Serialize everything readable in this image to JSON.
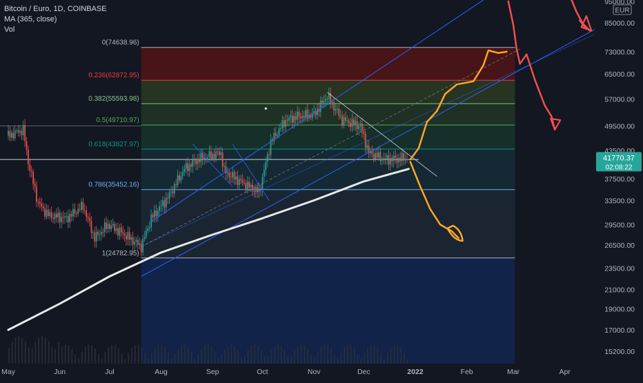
{
  "legend": {
    "symbol_line": "Bitcoin / Euro, 1D, COINBASE",
    "ma_line": "MA (365, close)",
    "vol_line": "Vol"
  },
  "currency_label": "EUR",
  "price_tag": {
    "price": "41770.37",
    "countdown": "02:08:22"
  },
  "colors": {
    "background": "#131722",
    "up": "#26a69a",
    "down": "#ef5350",
    "ma": "#e8e8e8",
    "channel": "#2962ff",
    "orange_drawing": "#ffa726",
    "red_drawing": "#f0504e"
  },
  "chart_data": {
    "type": "candlestick",
    "title": "Bitcoin / Euro, 1D, COINBASE",
    "y_scale": "log",
    "y_range": [
      14500,
      95000
    ],
    "x_range": [
      "2021-05-01",
      "2022-04-20"
    ],
    "y_ticks": [
      "95000.00",
      "85000.00",
      "73000.00",
      "65000.00",
      "57000.00",
      "49500.00",
      "43500.00",
      "37500.00",
      "33500.00",
      "29500.00",
      "26500.00",
      "23500.00",
      "21000.00",
      "19000.00",
      "17000.00",
      "15200.00"
    ],
    "x_ticks": [
      {
        "label": "May",
        "date": "2021-05-01"
      },
      {
        "label": "Jun",
        "date": "2021-06-01"
      },
      {
        "label": "Jul",
        "date": "2021-07-01"
      },
      {
        "label": "Aug",
        "date": "2021-08-01"
      },
      {
        "label": "Sep",
        "date": "2021-09-01"
      },
      {
        "label": "Oct",
        "date": "2021-10-01"
      },
      {
        "label": "Nov",
        "date": "2021-11-01"
      },
      {
        "label": "Dec",
        "date": "2021-12-01"
      },
      {
        "label": "2022",
        "date": "2022-01-01"
      },
      {
        "label": "Feb",
        "date": "2022-02-01"
      },
      {
        "label": "Mar",
        "date": "2022-03-01"
      },
      {
        "label": "Apr",
        "date": "2022-04-01"
      }
    ],
    "price_path": [
      [
        "2021-05-01",
        47000
      ],
      [
        "2021-05-10",
        48500
      ],
      [
        "2021-05-13",
        41000
      ],
      [
        "2021-05-19",
        33000
      ],
      [
        "2021-05-25",
        31000
      ],
      [
        "2021-06-05",
        30500
      ],
      [
        "2021-06-15",
        32500
      ],
      [
        "2021-06-22",
        27500
      ],
      [
        "2021-06-30",
        29500
      ],
      [
        "2021-07-10",
        28000
      ],
      [
        "2021-07-20",
        26300
      ],
      [
        "2021-07-26",
        30500
      ],
      [
        "2021-08-05",
        34000
      ],
      [
        "2021-08-15",
        39500
      ],
      [
        "2021-08-23",
        41500
      ],
      [
        "2021-09-06",
        43000
      ],
      [
        "2021-09-08",
        39000
      ],
      [
        "2021-09-20",
        36500
      ],
      [
        "2021-09-29",
        35000
      ],
      [
        "2021-10-06",
        45500
      ],
      [
        "2021-10-15",
        51000
      ],
      [
        "2021-10-22",
        52000
      ],
      [
        "2021-11-01",
        52500
      ],
      [
        "2021-11-09",
        58000
      ],
      [
        "2021-11-18",
        51000
      ],
      [
        "2021-11-29",
        49500
      ],
      [
        "2021-12-04",
        43000
      ],
      [
        "2021-12-14",
        41500
      ],
      [
        "2021-12-27",
        41770
      ]
    ],
    "moving_average_365": [
      [
        "2021-05-01",
        17000
      ],
      [
        "2021-06-01",
        19500
      ],
      [
        "2021-07-01",
        22500
      ],
      [
        "2021-08-01",
        25500
      ],
      [
        "2021-09-01",
        28000
      ],
      [
        "2021-10-01",
        30500
      ],
      [
        "2021-11-01",
        33500
      ],
      [
        "2021-12-01",
        37000
      ],
      [
        "2021-12-28",
        39500
      ]
    ],
    "fibonacci_levels": [
      {
        "ratio": "0",
        "value": 74638.96,
        "label": "0(74638.96)",
        "color": "#b2b5be"
      },
      {
        "ratio": "0.236",
        "value": 62872.95,
        "label": "0.236(62872.95)",
        "color": "#f23645"
      },
      {
        "ratio": "0.382",
        "value": 55593.98,
        "label": "0.382(55593.98)",
        "color": "#81c784"
      },
      {
        "ratio": "0.5",
        "value": 49710.97,
        "label": "0.5(49710.97)",
        "color": "#4caf50"
      },
      {
        "ratio": "0.618",
        "value": 43827.97,
        "label": "0.618(43827.97)",
        "color": "#089981"
      },
      {
        "ratio": "0.786",
        "value": 35452.16,
        "label": "0.786(35452.16)",
        "color": "#64b5f6"
      },
      {
        "ratio": "1",
        "value": 24782.95,
        "label": "1(24782.95)",
        "color": "#b2b5be"
      }
    ],
    "fib_anchor_start": "2021-07-20",
    "fib_anchor_end": "2022-03-02",
    "current_price": 41770.37,
    "orange_bull_path": [
      [
        "2021-12-29",
        41500
      ],
      [
        "2022-01-03",
        44000
      ],
      [
        "2022-01-08",
        50500
      ],
      [
        "2022-01-14",
        53500
      ],
      [
        "2022-01-19",
        58500
      ],
      [
        "2022-01-26",
        61500
      ],
      [
        "2022-02-05",
        62500
      ],
      [
        "2022-02-11",
        68000
      ],
      [
        "2022-02-14",
        73500
      ],
      [
        "2022-02-20",
        72500
      ],
      [
        "2022-02-25",
        73000
      ]
    ],
    "orange_bear_path": [
      [
        "2021-12-29",
        41000
      ],
      [
        "2022-01-04",
        36000
      ],
      [
        "2022-01-10",
        32000
      ],
      [
        "2022-01-16",
        29500
      ],
      [
        "2022-01-23",
        28500
      ],
      [
        "2022-01-27",
        27500
      ]
    ],
    "red_path": [
      [
        "2022-02-26",
        95000
      ],
      [
        "2022-03-01",
        84000
      ],
      [
        "2022-03-03",
        74000
      ],
      [
        "2022-03-05",
        68500
      ],
      [
        "2022-03-09",
        72000
      ],
      [
        "2022-03-14",
        63000
      ],
      [
        "2022-03-20",
        55000
      ],
      [
        "2022-03-24",
        52000
      ],
      [
        "2022-03-26",
        48500
      ]
    ],
    "red_path_top": [
      [
        "2022-04-04",
        98000
      ],
      [
        "2022-04-08",
        90000
      ],
      [
        "2022-04-13",
        83000
      ],
      [
        "2022-04-10",
        86000
      ],
      [
        "2022-04-16",
        81500
      ]
    ]
  }
}
